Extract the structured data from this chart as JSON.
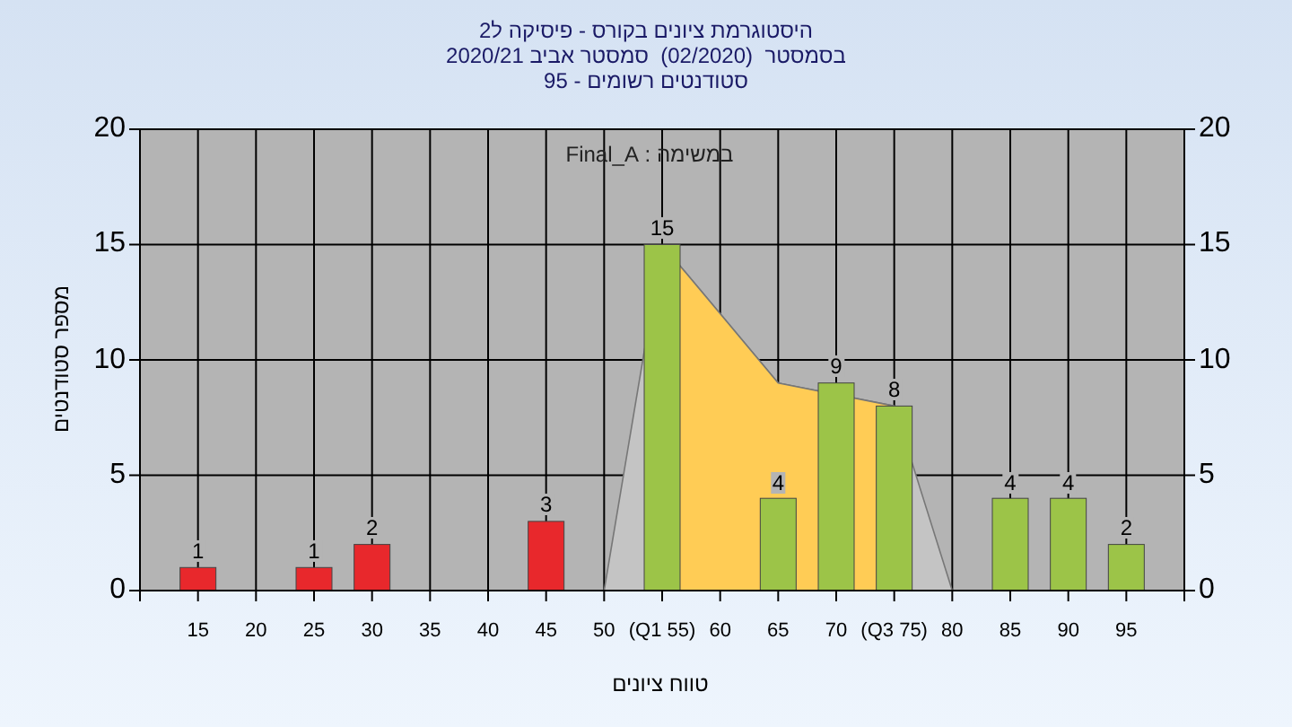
{
  "chart_data": {
    "type": "bar",
    "title": "היסטוגרמת ציונים בקורס - פיסיקה ל2",
    "subtitle": "בסמסטר  (02/2020)  סמסטר אביב 2020/21\nסטודנטים רשומים - 95",
    "xlabel": "טווח ציונים",
    "ylabel": "מספר סטודנטים",
    "annotations": [
      "במשימה : Final_A"
    ],
    "xlim": [
      10,
      100
    ],
    "xticks": [
      {
        "value": 10,
        "label": null
      },
      15,
      20,
      25,
      30,
      35,
      40,
      45,
      50,
      {
        "value": 55,
        "label": "(Q1 55)"
      },
      60,
      65,
      70,
      {
        "value": 75,
        "label": "(Q3 75)"
      },
      80,
      85,
      90,
      95,
      {
        "value": 100,
        "label": null
      }
    ],
    "ylim": [
      0,
      20
    ],
    "yticks": [
      0,
      5,
      10,
      15,
      20
    ],
    "y2lim": [
      0,
      20
    ],
    "y2ticks": [
      0,
      5,
      10,
      15,
      20
    ],
    "grid": true,
    "series": [
      {
        "type": "area",
        "color": "#c4c4c4",
        "x": [
          50,
          55,
          60,
          65,
          75,
          80
        ],
        "values": [
          0,
          15,
          12,
          9,
          8,
          0
        ]
      },
      {
        "type": "area",
        "color": "#ffcc55",
        "x": [
          55,
          60,
          65,
          75
        ],
        "values": [
          15,
          12,
          9,
          8
        ]
      },
      {
        "x": [
          15,
          25,
          30,
          45,
          55,
          65,
          70,
          75,
          85,
          90,
          95
        ],
        "values": [
          1,
          1,
          2,
          3,
          15,
          4,
          9,
          8,
          4,
          4,
          2
        ],
        "colors": [
          "#e8282c",
          "#e8282c",
          "#e8282c",
          "#e8282c",
          "#9cc448",
          "#9cc448",
          "#9cc448",
          "#9cc448",
          "#9cc448",
          "#9cc448",
          "#9cc448"
        ],
        "value_labels": [
          "1",
          "1",
          "2",
          "3",
          "15",
          "4",
          "9",
          "8",
          "4",
          "4",
          "2"
        ]
      }
    ]
  }
}
